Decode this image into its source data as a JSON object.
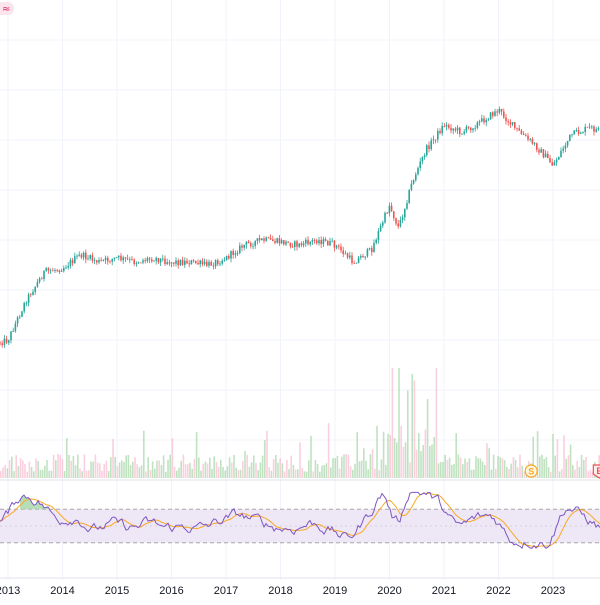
{
  "chart_data": {
    "type": "candlestick",
    "panels": [
      "price",
      "volume",
      "rsi"
    ],
    "x_axis": {
      "tick_labels": [
        "2013",
        "2014",
        "2015",
        "2016",
        "2017",
        "2018",
        "2019",
        "2020",
        "2021",
        "2022",
        "2023"
      ]
    },
    "price": {
      "series_points": [
        [
          "2012-09",
          345
        ],
        [
          "2013-01",
          340
        ],
        [
          "2013-05",
          300
        ],
        [
          "2013-09",
          272
        ],
        [
          "2014-01",
          268
        ],
        [
          "2014-05",
          255
        ],
        [
          "2014-09",
          262
        ],
        [
          "2015-01",
          258
        ],
        [
          "2015-05",
          262
        ],
        [
          "2015-09",
          258
        ],
        [
          "2016-01",
          262
        ],
        [
          "2016-05",
          262
        ],
        [
          "2016-09",
          265
        ],
        [
          "2017-01",
          258
        ],
        [
          "2017-05",
          245
        ],
        [
          "2017-09",
          240
        ],
        [
          "2018-01",
          242
        ],
        [
          "2018-05",
          245
        ],
        [
          "2018-09",
          240
        ],
        [
          "2019-01",
          245
        ],
        [
          "2019-05",
          262
        ],
        [
          "2019-09",
          250
        ],
        [
          "2020-01",
          205
        ],
        [
          "2020-03",
          228
        ],
        [
          "2020-06",
          182
        ],
        [
          "2020-09",
          150
        ],
        [
          "2021-01",
          125
        ],
        [
          "2021-05",
          132
        ],
        [
          "2021-09",
          122
        ],
        [
          "2022-01",
          110
        ],
        [
          "2022-05",
          130
        ],
        [
          "2022-09",
          145
        ],
        [
          "2023-01",
          165
        ],
        [
          "2023-05",
          135
        ],
        [
          "2023-09",
          128
        ],
        [
          "2024-01",
          133
        ]
      ],
      "up_color": "#26a69a",
      "down_color": "#ef5350"
    },
    "volume": {
      "color": "#a5d6a7"
    },
    "rsi": {
      "line_color": "#7e57c2",
      "ma_color": "#f9a825",
      "band_fill": "#ede7f6",
      "upper_level": 70,
      "lower_level": 30
    },
    "markers": [
      {
        "label": "S",
        "color": "#f5a623",
        "near": "2023"
      },
      {
        "label": "E",
        "color": "#ef5350",
        "near": "2024"
      }
    ],
    "grid": true
  },
  "overlay": {
    "top_left_icon": "wave-icon"
  }
}
